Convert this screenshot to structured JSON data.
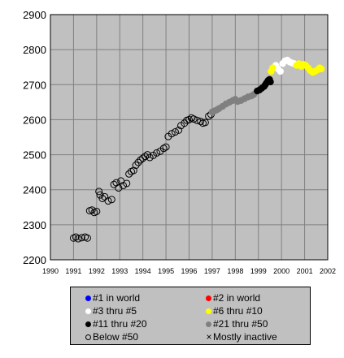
{
  "chart_data": {
    "type": "scatter",
    "title": "",
    "xlabel": "",
    "ylabel": "",
    "xlim": [
      1990,
      2002
    ],
    "ylim": [
      2200,
      2900
    ],
    "x_ticks": [
      1990,
      1991,
      1992,
      1993,
      1994,
      1995,
      1996,
      1997,
      1998,
      1999,
      2000,
      2001,
      2002
    ],
    "y_ticks": [
      2200,
      2300,
      2400,
      2500,
      2600,
      2700,
      2800,
      2900
    ],
    "x_tick_labels": [
      "1990",
      "1991",
      "1992",
      "1993",
      "1994",
      "1995",
      "1996",
      "1997",
      "1998",
      "1999",
      "2000",
      "2001",
      "2002"
    ],
    "y_tick_labels": [
      "2200",
      "2300",
      "2400",
      "2500",
      "2600",
      "2700",
      "2800",
      "2900"
    ],
    "grid": true,
    "background": "#c0c0c0",
    "legend_position": "bottom",
    "legend": [
      {
        "key": "rank1",
        "label": "#1 in world",
        "marker": "filled-circle",
        "color": "#0000ff"
      },
      {
        "key": "rank2",
        "label": "#2 in world",
        "marker": "filled-circle",
        "color": "#ff0000"
      },
      {
        "key": "rank3_5",
        "label": "#3 thru #5",
        "marker": "filled-circle",
        "color": "#ffffff"
      },
      {
        "key": "rank6_10",
        "label": "#6 thru #10",
        "marker": "filled-circle",
        "color": "#ffff00"
      },
      {
        "key": "rank11_20",
        "label": "#11 thru #20",
        "marker": "filled-circle",
        "color": "#000000"
      },
      {
        "key": "rank21_50",
        "label": "#21 thru #50",
        "marker": "filled-circle",
        "color": "#808080"
      },
      {
        "key": "below50",
        "label": "Below #50",
        "marker": "hollow-circle",
        "color": "#000000"
      },
      {
        "key": "inactive",
        "label": "Mostly inactive",
        "marker": "cross",
        "color": "#000000"
      }
    ],
    "series": [
      {
        "key": "below50",
        "marker": "hollow-circle",
        "color": "#000000",
        "points": [
          [
            1991.0,
            2262
          ],
          [
            1991.1,
            2265
          ],
          [
            1991.2,
            2260
          ],
          [
            1991.35,
            2263
          ],
          [
            1991.5,
            2265
          ],
          [
            1991.6,
            2262
          ],
          [
            1991.7,
            2340
          ],
          [
            1991.8,
            2342
          ],
          [
            1991.9,
            2335
          ],
          [
            1992.0,
            2338
          ],
          [
            1992.1,
            2395
          ],
          [
            1992.15,
            2385
          ],
          [
            1992.25,
            2375
          ],
          [
            1992.35,
            2380
          ],
          [
            1992.5,
            2368
          ],
          [
            1992.65,
            2372
          ],
          [
            1992.75,
            2415
          ],
          [
            1992.85,
            2420
          ],
          [
            1992.95,
            2405
          ],
          [
            1993.05,
            2425
          ],
          [
            1993.15,
            2412
          ],
          [
            1993.3,
            2418
          ],
          [
            1993.4,
            2445
          ],
          [
            1993.5,
            2452
          ],
          [
            1993.6,
            2455
          ],
          [
            1993.7,
            2470
          ],
          [
            1993.8,
            2478
          ],
          [
            1993.9,
            2485
          ],
          [
            1994.0,
            2490
          ],
          [
            1994.1,
            2495
          ],
          [
            1994.2,
            2500
          ],
          [
            1994.3,
            2492
          ],
          [
            1994.45,
            2498
          ],
          [
            1994.6,
            2505
          ],
          [
            1994.75,
            2510
          ],
          [
            1994.9,
            2518
          ],
          [
            1995.0,
            2522
          ],
          [
            1995.1,
            2552
          ],
          [
            1995.25,
            2560
          ],
          [
            1995.4,
            2565
          ],
          [
            1995.55,
            2570
          ],
          [
            1995.65,
            2583
          ],
          [
            1995.8,
            2590
          ],
          [
            1995.9,
            2598
          ],
          [
            1996.0,
            2600
          ],
          [
            1996.1,
            2605
          ],
          [
            1996.2,
            2602
          ],
          [
            1996.35,
            2598
          ],
          [
            1996.5,
            2595
          ],
          [
            1996.6,
            2590
          ],
          [
            1996.7,
            2592
          ],
          [
            1996.85,
            2610
          ],
          [
            1996.95,
            2615
          ]
        ]
      },
      {
        "key": "rank21_50",
        "marker": "filled-circle",
        "color": "#808080",
        "points": [
          [
            1997.0,
            2622
          ],
          [
            1997.1,
            2625
          ],
          [
            1997.2,
            2628
          ],
          [
            1997.3,
            2632
          ],
          [
            1997.45,
            2638
          ],
          [
            1997.6,
            2645
          ],
          [
            1997.75,
            2650
          ],
          [
            1997.9,
            2655
          ],
          [
            1998.0,
            2658
          ],
          [
            1998.1,
            2652
          ],
          [
            1998.25,
            2655
          ],
          [
            1998.4,
            2660
          ],
          [
            1998.55,
            2665
          ],
          [
            1998.7,
            2668
          ],
          [
            1998.8,
            2672
          ]
        ]
      },
      {
        "key": "rank11_20",
        "marker": "filled-circle",
        "color": "#000000",
        "points": [
          [
            1998.95,
            2682
          ],
          [
            1999.05,
            2685
          ],
          [
            1999.15,
            2690
          ],
          [
            1999.25,
            2695
          ],
          [
            1999.3,
            2700
          ],
          [
            1999.35,
            2705
          ],
          [
            1999.42,
            2712
          ],
          [
            1999.48,
            2715
          ],
          [
            1999.52,
            2708
          ]
        ]
      },
      {
        "key": "rank3_5",
        "marker": "filled-circle",
        "color": "#ffffff",
        "points": [
          [
            1999.75,
            2755
          ],
          [
            1999.85,
            2745
          ],
          [
            1999.95,
            2738
          ],
          [
            2000.05,
            2760
          ],
          [
            2000.15,
            2768
          ],
          [
            2000.25,
            2770
          ],
          [
            2000.35,
            2765
          ],
          [
            2000.45,
            2762
          ],
          [
            2000.55,
            2760
          ]
        ]
      },
      {
        "key": "rank6_10",
        "marker": "filled-circle",
        "color": "#ffff00",
        "points": [
          [
            1999.55,
            2738
          ],
          [
            1999.62,
            2748
          ],
          [
            2000.65,
            2755
          ],
          [
            2000.75,
            2760
          ],
          [
            2000.85,
            2752
          ],
          [
            2000.95,
            2758
          ],
          [
            2001.05,
            2755
          ],
          [
            2001.15,
            2748
          ],
          [
            2001.25,
            2740
          ],
          [
            2001.35,
            2735
          ],
          [
            2001.45,
            2738
          ],
          [
            2001.55,
            2742
          ],
          [
            2001.65,
            2748
          ],
          [
            2001.72,
            2745
          ]
        ]
      }
    ]
  }
}
